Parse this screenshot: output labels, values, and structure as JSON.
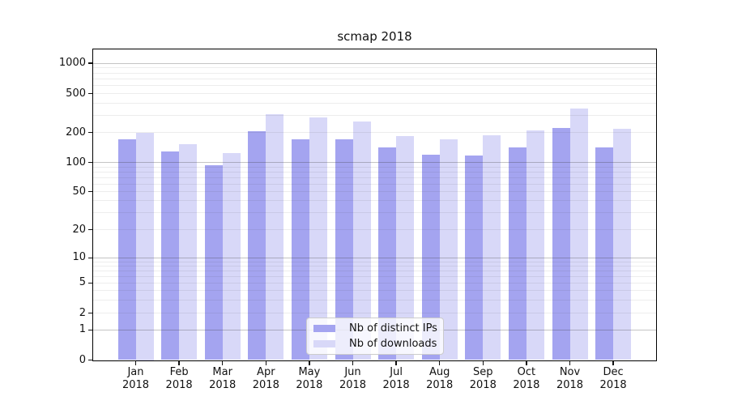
{
  "title": "scmap 2018",
  "chart_data": {
    "type": "bar",
    "title": "scmap 2018",
    "categories": [
      "Jan 2018",
      "Feb 2018",
      "Mar 2018",
      "Apr 2018",
      "May 2018",
      "Jun 2018",
      "Jul 2018",
      "Aug 2018",
      "Sep 2018",
      "Oct 2018",
      "Nov 2018",
      "Dec 2018"
    ],
    "series": [
      {
        "name": "Nb of distinct IPs",
        "color": "#a4a4f0",
        "values": [
          170,
          130,
          93,
          205,
          170,
          172,
          143,
          119,
          117,
          143,
          222,
          143
        ]
      },
      {
        "name": "Nb of downloads",
        "color": "#d8d8f8",
        "values": [
          200,
          152,
          124,
          305,
          283,
          260,
          185,
          170,
          187,
          210,
          352,
          217
        ]
      }
    ],
    "xlabel": "",
    "ylabel": "",
    "yscale": "symlog",
    "yticks": [
      0,
      1,
      2,
      5,
      10,
      20,
      50,
      100,
      200,
      500,
      1000
    ],
    "ylim": [
      0,
      1500
    ],
    "grid": true,
    "legend_position": "lower center"
  },
  "colors": {
    "background": "#ffffff",
    "spine": "#000000",
    "grid_major": "#b8b8b8",
    "grid_minor": "#ebebeb",
    "text": "#111111"
  }
}
